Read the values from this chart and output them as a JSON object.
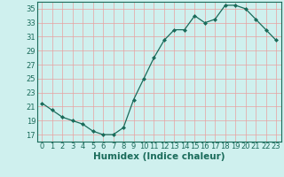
{
  "x": [
    0,
    1,
    2,
    3,
    4,
    5,
    6,
    7,
    8,
    9,
    10,
    11,
    12,
    13,
    14,
    15,
    16,
    17,
    18,
    19,
    20,
    21,
    22,
    23
  ],
  "y": [
    21.5,
    20.5,
    19.5,
    19.0,
    18.5,
    17.5,
    17.0,
    17.0,
    18.0,
    22.0,
    25.0,
    28.0,
    30.5,
    32.0,
    32.0,
    34.0,
    33.0,
    33.5,
    35.5,
    35.5,
    35.0,
    33.5,
    32.0,
    30.5
  ],
  "xlabel": "Humidex (Indice chaleur)",
  "ylim": [
    16,
    36
  ],
  "xlim": [
    -0.5,
    23.5
  ],
  "yticks": [
    17,
    19,
    21,
    23,
    25,
    27,
    29,
    31,
    33,
    35
  ],
  "xticks": [
    0,
    1,
    2,
    3,
    4,
    5,
    6,
    7,
    8,
    9,
    10,
    11,
    12,
    13,
    14,
    15,
    16,
    17,
    18,
    19,
    20,
    21,
    22,
    23
  ],
  "line_color": "#1a6b5a",
  "marker": "D",
  "marker_size": 2.0,
  "bg_color": "#cff0ee",
  "grid_color": "#e8a0a0",
  "xlabel_fontsize": 7.5,
  "tick_fontsize": 6.0
}
